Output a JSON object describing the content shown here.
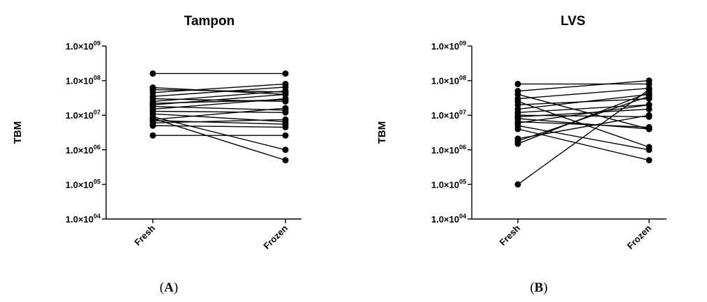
{
  "chart_data": [
    {
      "type": "line",
      "title": "Tampon",
      "panel_label": "A",
      "ylabel": "TBM",
      "yscale": "log",
      "ylim": [
        10000,
        1000000000
      ],
      "yticks": [
        {
          "base": "1.0×10",
          "exp": "09",
          "value": 1000000000
        },
        {
          "base": "1.0×10",
          "exp": "08",
          "value": 100000000
        },
        {
          "base": "1.0×10",
          "exp": "07",
          "value": 10000000
        },
        {
          "base": "1.0×10",
          "exp": "06",
          "value": 1000000
        },
        {
          "base": "1.0×10",
          "exp": "05",
          "value": 100000
        },
        {
          "base": "1.0×10",
          "exp": "04",
          "value": 10000
        }
      ],
      "categories": [
        "Fresh",
        "Frozen"
      ],
      "pairs": [
        [
          160000000,
          160000000
        ],
        [
          63000000,
          40000000
        ],
        [
          55000000,
          47000000
        ],
        [
          45000000,
          80000000
        ],
        [
          35000000,
          65000000
        ],
        [
          30000000,
          25000000
        ],
        [
          25000000,
          50000000
        ],
        [
          22000000,
          28000000
        ],
        [
          20000000,
          40000000
        ],
        [
          18000000,
          14000000
        ],
        [
          15000000,
          30000000
        ],
        [
          13000000,
          12000000
        ],
        [
          11000000,
          6500000
        ],
        [
          9000000,
          1000000
        ],
        [
          8000000,
          500000
        ],
        [
          7500000,
          16000000
        ],
        [
          7000000,
          5500000
        ],
        [
          6000000,
          7500000
        ],
        [
          5000000,
          4500000
        ],
        [
          2600000,
          2600000
        ]
      ]
    },
    {
      "type": "line",
      "title": "LVS",
      "panel_label": "B",
      "ylabel": "TBM",
      "yscale": "log",
      "ylim": [
        10000,
        1000000000
      ],
      "yticks": [
        {
          "base": "1.0×10",
          "exp": "09",
          "value": 1000000000
        },
        {
          "base": "1.0×10",
          "exp": "08",
          "value": 100000000
        },
        {
          "base": "1.0×10",
          "exp": "07",
          "value": 10000000
        },
        {
          "base": "1.0×10",
          "exp": "06",
          "value": 1000000
        },
        {
          "base": "1.0×10",
          "exp": "05",
          "value": 100000
        },
        {
          "base": "1.0×10",
          "exp": "04",
          "value": 10000
        }
      ],
      "categories": [
        "Fresh",
        "Frozen"
      ],
      "pairs": [
        [
          80000000,
          80000000
        ],
        [
          50000000,
          100000000
        ],
        [
          40000000,
          4000000
        ],
        [
          30000000,
          60000000
        ],
        [
          25000000,
          1200000
        ],
        [
          20000000,
          30000000
        ],
        [
          15000000,
          40000000
        ],
        [
          12000000,
          20000000
        ],
        [
          10000000,
          9000000
        ],
        [
          9000000,
          15000000
        ],
        [
          8000000,
          4000000
        ],
        [
          6500000,
          4500000
        ],
        [
          6000000,
          20000000
        ],
        [
          5000000,
          1000000
        ],
        [
          4000000,
          500000
        ],
        [
          2100000,
          10000000
        ],
        [
          1800000,
          35000000
        ],
        [
          1500000,
          45000000
        ],
        [
          100000,
          55000000
        ]
      ]
    }
  ]
}
